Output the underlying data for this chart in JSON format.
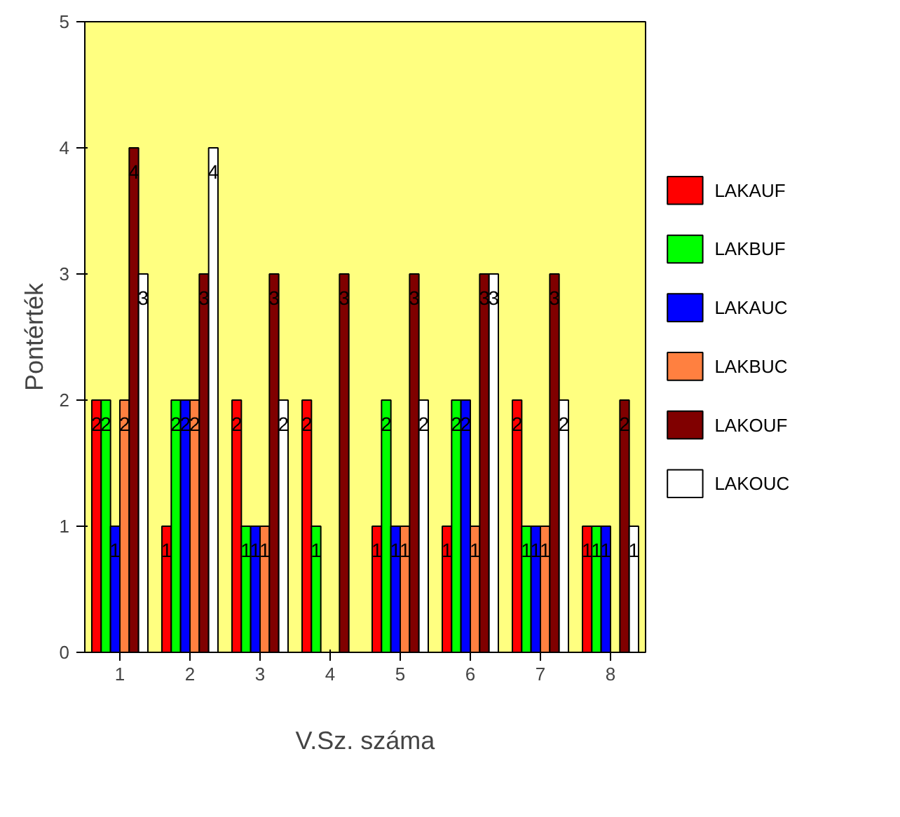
{
  "chart_data": {
    "type": "bar",
    "xlabel": "V.Sz. száma",
    "ylabel": "Pontérték",
    "categories": [
      "1",
      "2",
      "3",
      "4",
      "5",
      "6",
      "7",
      "8"
    ],
    "series": [
      {
        "name": "LAKAUF",
        "color": "#ff0000",
        "values": [
          2,
          1,
          2,
          2,
          1,
          1,
          2,
          1
        ],
        "value_labels": [
          "2",
          "1",
          "2",
          "2",
          "1",
          "1",
          "2",
          "1"
        ]
      },
      {
        "name": "LAKBUF",
        "color": "#00ff00",
        "values": [
          2,
          2,
          1,
          1,
          2,
          2,
          1,
          1
        ],
        "value_labels": [
          "2",
          "2",
          "1",
          "1",
          "2",
          "2",
          "1",
          "1"
        ]
      },
      {
        "name": "LAKAUC",
        "color": "#0000ff",
        "values": [
          1,
          2,
          1,
          0,
          1,
          2,
          1,
          1
        ],
        "value_labels": [
          "1",
          "2",
          "1",
          null,
          "1",
          "2",
          "1",
          "1"
        ]
      },
      {
        "name": "LAKBUC",
        "color": "#ff8040",
        "values": [
          2,
          2,
          1,
          0,
          1,
          1,
          1,
          0
        ],
        "value_labels": [
          "2",
          "2",
          "1",
          null,
          "1",
          "1",
          "1",
          null
        ]
      },
      {
        "name": "LAKOUF",
        "color": "#800000",
        "values": [
          4,
          3,
          3,
          3,
          3,
          3,
          3,
          2
        ],
        "value_labels": [
          "4",
          "3",
          "3",
          "3",
          "3",
          "3",
          "3",
          "2"
        ]
      },
      {
        "name": "LAKOUC",
        "color": "#ffffff",
        "values": [
          3,
          4,
          2,
          0,
          2,
          3,
          2,
          1
        ],
        "value_labels": [
          "3",
          "4",
          "2",
          null,
          "2",
          "3",
          "2",
          "1"
        ]
      }
    ],
    "ylim": [
      0,
      5
    ],
    "yticks": [
      0,
      1,
      2,
      3,
      4,
      5
    ],
    "grid": false,
    "legend": "right"
  }
}
